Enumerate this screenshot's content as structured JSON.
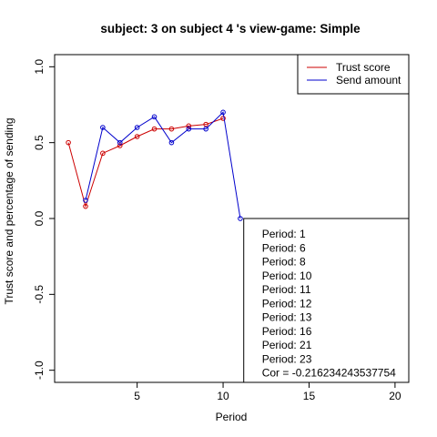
{
  "chart_data": {
    "type": "line",
    "title": "subject:  3  on subject  4 's view-game:  Simple",
    "xlabel": "Period",
    "ylabel": "Trust score and percentage of sending",
    "xlim": [
      0.2,
      20.8
    ],
    "ylim": [
      -1.08,
      1.08
    ],
    "x_ticks": [
      5,
      10,
      15,
      20
    ],
    "y_ticks": [
      -1.0,
      -0.5,
      0.0,
      0.5,
      1.0
    ],
    "y_tick_labels": [
      "-1.0",
      "-0.5",
      "0.0",
      "0.5",
      "1.0"
    ],
    "series": [
      {
        "name": "Trust score",
        "color": "#cc0000",
        "x": [
          1,
          2,
          3,
          4,
          5,
          6,
          7,
          8,
          9,
          10
        ],
        "y": [
          0.5,
          0.08,
          0.43,
          0.48,
          0.54,
          0.59,
          0.59,
          0.61,
          0.62,
          0.66
        ]
      },
      {
        "name": "Send amount",
        "color": "#0000cc",
        "x": [
          2,
          3,
          4,
          5,
          6,
          7,
          8,
          9,
          10,
          11
        ],
        "y": [
          0.12,
          0.6,
          0.5,
          0.6,
          0.67,
          0.5,
          0.59,
          0.59,
          0.7,
          0.0
        ]
      }
    ],
    "legend_position": "top-right",
    "annotation_lines": [
      "Period:  1",
      "Period:  6",
      "Period:  8",
      "Period:  10",
      "Period:  11",
      "Period:  12",
      "Period:  13",
      "Period:  16",
      "Period:  21",
      "Period:  23",
      "Cor =  -0.216234243537754"
    ]
  }
}
